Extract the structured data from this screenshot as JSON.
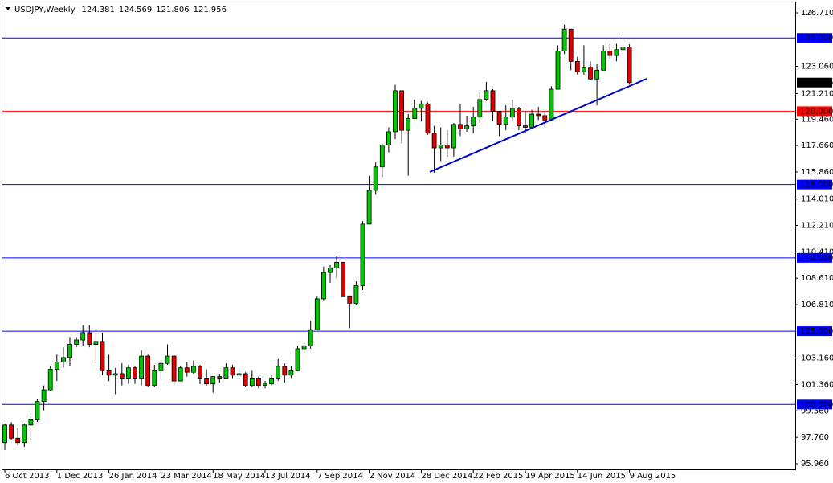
{
  "chart_data": {
    "type": "candlestick",
    "title": "USDJPY,Weekly",
    "categories": [
      "6 Oct 2013",
      null,
      null,
      null,
      null,
      null,
      null,
      null,
      "1 Dec 2013",
      null,
      null,
      null,
      null,
      null,
      null,
      null,
      "26 Jan 2014",
      null,
      null,
      null,
      null,
      null,
      null,
      null,
      "23 Mar 2014",
      null,
      null,
      null,
      null,
      null,
      null,
      null,
      "18 May 2014",
      null,
      null,
      null,
      null,
      null,
      null,
      null,
      "13 Jul 2014",
      null,
      null,
      null,
      null,
      null,
      null,
      null,
      "7 Sep 2014",
      null,
      null,
      null,
      null,
      null,
      null,
      null,
      "2 Nov 2014",
      null,
      null,
      null,
      null,
      null,
      null,
      null,
      "28 Dec 2014",
      null,
      null,
      null,
      null,
      null,
      null,
      null,
      "22 Feb 2015",
      null,
      null,
      null,
      null,
      null,
      null,
      null,
      "19 Apr 2015",
      null,
      null,
      null,
      null,
      null,
      null,
      null,
      "14 Jun 2015",
      null,
      null,
      null,
      null,
      null,
      null,
      null,
      "9 Aug 2015"
    ],
    "open": [
      97.4,
      98.6,
      97.7,
      97.4,
      98.6,
      99.0,
      100.2,
      101.0,
      102.4,
      102.9,
      103.2,
      104.1,
      104.4,
      104.9,
      104.1,
      104.3,
      102.3,
      102.0,
      102.1,
      101.8,
      102.5,
      101.8,
      103.3,
      101.3,
      102.3,
      102.8,
      103.3,
      101.6,
      102.5,
      102.2,
      102.6,
      101.8,
      101.4,
      101.9,
      101.8,
      102.5,
      102.0,
      102.1,
      101.3,
      101.8,
      101.3,
      101.4,
      101.8,
      102.6,
      102.0,
      102.3,
      103.8,
      104.0,
      105.1,
      107.2,
      109.0,
      109.3,
      109.7,
      107.4,
      106.9,
      108.1,
      112.3,
      114.6,
      116.2,
      117.7,
      118.6,
      121.4,
      118.7,
      119.5,
      120.2,
      120.5,
      118.5,
      117.5,
      117.7,
      117.5,
      119.1,
      118.8,
      119.0,
      119.6,
      120.8,
      121.4,
      120.0,
      119.1,
      119.6,
      120.2,
      119.0,
      118.9,
      119.8,
      119.7,
      119.4,
      121.5,
      124.1,
      125.6,
      123.4,
      122.7,
      123.0,
      122.2,
      122.8,
      124.1,
      123.8,
      124.2,
      124.381
    ],
    "high": [
      98.7,
      98.8,
      98.4,
      98.7,
      99.2,
      100.4,
      101.3,
      102.6,
      103.4,
      103.9,
      104.6,
      104.6,
      105.4,
      105.4,
      104.9,
      104.9,
      103.4,
      102.5,
      102.8,
      102.7,
      102.6,
      103.7,
      103.4,
      102.7,
      103.0,
      104.1,
      103.4,
      102.6,
      102.9,
      103.0,
      102.7,
      102.4,
      101.8,
      102.1,
      102.8,
      102.7,
      102.3,
      102.2,
      102.3,
      101.9,
      101.6,
      102.0,
      103.1,
      102.8,
      102.6,
      104.0,
      104.3,
      105.7,
      107.4,
      109.4,
      109.5,
      110.1,
      109.7,
      107.4,
      108.4,
      112.5,
      115.6,
      116.5,
      117.8,
      118.9,
      121.8,
      121.4,
      119.8,
      120.8,
      120.7,
      120.6,
      119.0,
      118.9,
      118.7,
      119.2,
      120.5,
      119.7,
      120.3,
      121.3,
      122.0,
      121.5,
      120.0,
      120.4,
      120.8,
      120.3,
      120.0,
      120.1,
      120.3,
      120.0,
      121.7,
      124.5,
      125.9,
      125.6,
      123.7,
      124.5,
      123.4,
      123.2,
      124.5,
      124.6,
      124.6,
      125.3,
      124.569
    ],
    "low": [
      96.9,
      97.6,
      97.2,
      97.1,
      97.6,
      98.8,
      99.6,
      100.9,
      101.6,
      102.5,
      102.6,
      103.9,
      104.0,
      103.9,
      102.8,
      102.0,
      101.6,
      100.7,
      101.3,
      101.4,
      101.4,
      101.3,
      101.2,
      101.2,
      101.7,
      102.7,
      101.3,
      101.6,
      101.9,
      102.1,
      101.4,
      101.3,
      100.8,
      101.5,
      101.8,
      101.8,
      101.9,
      101.2,
      101.2,
      101.1,
      101.1,
      101.3,
      101.6,
      101.5,
      101.8,
      102.3,
      103.5,
      103.8,
      105.1,
      107.1,
      108.3,
      108.6,
      107.4,
      105.2,
      106.8,
      107.8,
      112.3,
      114.3,
      115.5,
      117.2,
      118.1,
      117.8,
      115.6,
      119.5,
      119.3,
      118.4,
      115.8,
      116.6,
      116.9,
      116.9,
      118.3,
      118.6,
      118.5,
      119.2,
      120.7,
      119.3,
      118.3,
      118.7,
      119.3,
      118.7,
      118.5,
      118.8,
      119.4,
      118.9,
      119.4,
      121.5,
      123.9,
      122.8,
      122.5,
      122.5,
      122.1,
      120.4,
      122.8,
      123.6,
      123.4,
      123.9,
      121.806
    ],
    "close": [
      98.6,
      97.7,
      97.4,
      98.6,
      99.0,
      100.2,
      101.0,
      102.4,
      102.9,
      103.2,
      104.1,
      104.4,
      104.9,
      104.1,
      104.3,
      102.3,
      102.0,
      102.1,
      101.8,
      102.5,
      101.8,
      103.3,
      101.3,
      102.3,
      102.8,
      103.3,
      101.6,
      102.5,
      102.2,
      102.6,
      101.8,
      101.4,
      101.9,
      101.8,
      102.5,
      102.0,
      102.1,
      101.3,
      101.8,
      101.3,
      101.4,
      101.8,
      102.6,
      102.0,
      102.3,
      103.8,
      104.0,
      105.1,
      107.2,
      109.0,
      109.3,
      109.7,
      107.4,
      106.9,
      108.1,
      112.3,
      114.6,
      116.2,
      117.7,
      118.6,
      121.4,
      118.7,
      119.5,
      120.2,
      120.5,
      118.5,
      117.5,
      117.7,
      117.5,
      119.1,
      118.8,
      119.0,
      119.6,
      120.8,
      121.4,
      120.0,
      119.1,
      119.6,
      120.2,
      119.0,
      118.9,
      119.8,
      119.7,
      119.4,
      121.5,
      124.1,
      125.6,
      123.4,
      122.7,
      123.0,
      122.2,
      122.8,
      124.1,
      123.8,
      124.2,
      124.381,
      121.956
    ],
    "up_color": "#00c800",
    "down_color": "#e00000",
    "ylim": [
      95.96,
      126.71
    ],
    "yticks": [
      {
        "value": 126.71,
        "label": "126.710"
      },
      {
        "value": 123.06,
        "label": "123.060"
      },
      {
        "value": 121.21,
        "label": "121.210"
      },
      {
        "value": 119.46,
        "label": "119.460"
      },
      {
        "value": 117.66,
        "label": "117.660"
      },
      {
        "value": 115.86,
        "label": "115.860"
      },
      {
        "value": 114.01,
        "label": "114.010"
      },
      {
        "value": 112.21,
        "label": "112.210"
      },
      {
        "value": 110.41,
        "label": "110.410"
      },
      {
        "value": 108.61,
        "label": "108.610"
      },
      {
        "value": 106.81,
        "label": "106.810"
      },
      {
        "value": 103.16,
        "label": "103.160"
      },
      {
        "value": 101.36,
        "label": "101.360"
      },
      {
        "value": 99.56,
        "label": "99.560"
      },
      {
        "value": 97.76,
        "label": "97.760"
      },
      {
        "value": 95.96,
        "label": "95.960"
      }
    ],
    "levels": [
      {
        "value": 125,
        "label": "125.000",
        "color": "#0000ff"
      },
      {
        "value": 120,
        "label": "120.000",
        "color": "#ff0000"
      },
      {
        "value": 115,
        "label": "115.000",
        "color": "#0000ff"
      },
      {
        "value": 110,
        "label": "110.000",
        "color": "#0000ff"
      },
      {
        "value": 105,
        "label": "105.000",
        "color": "#0000ff"
      },
      {
        "value": 100,
        "label": "100.000",
        "color": "#0000ff"
      }
    ]
  }
}
